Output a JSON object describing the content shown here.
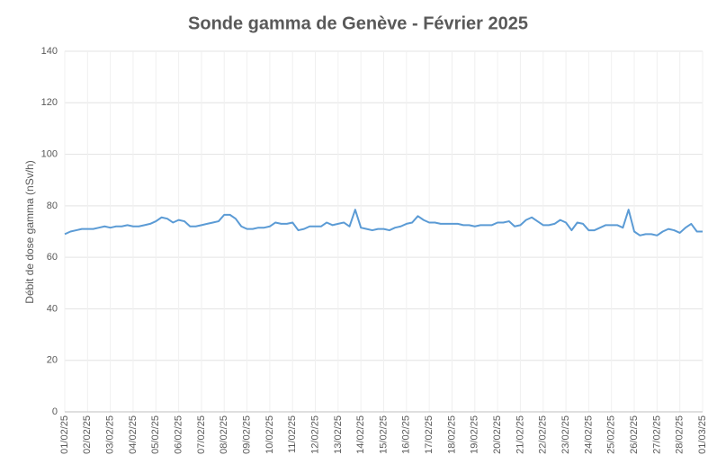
{
  "chart_data": {
    "type": "line",
    "title": "Sonde gamma de Genève - Février 2025",
    "y_label": "Débit de dose gamma (nSv/h)",
    "categories": [
      "01/02/25",
      null,
      null,
      null,
      "02/02/25",
      null,
      null,
      null,
      "03/02/25",
      null,
      null,
      null,
      "04/02/25",
      null,
      null,
      null,
      "05/02/25",
      null,
      null,
      null,
      "06/02/25",
      null,
      null,
      null,
      "07/02/25",
      null,
      null,
      null,
      "08/02/25",
      null,
      null,
      null,
      "09/02/25",
      null,
      null,
      null,
      "10/02/25",
      null,
      null,
      null,
      "11/02/25",
      null,
      null,
      null,
      "12/02/25",
      null,
      null,
      null,
      "13/02/25",
      null,
      null,
      null,
      "14/02/25",
      null,
      null,
      null,
      "15/02/25",
      null,
      null,
      null,
      "16/02/25",
      null,
      null,
      null,
      "17/02/25",
      null,
      null,
      null,
      "18/02/25",
      null,
      null,
      null,
      "19/02/25",
      null,
      null,
      null,
      "20/02/25",
      null,
      null,
      null,
      "21/02/25",
      null,
      null,
      null,
      "22/02/25",
      null,
      null,
      null,
      "23/02/25",
      null,
      null,
      null,
      "24/02/25",
      null,
      null,
      null,
      "25/02/25",
      null,
      null,
      null,
      "26/02/25",
      null,
      null,
      null,
      "27/02/25",
      null,
      null,
      null,
      "28/02/25",
      null,
      null,
      null,
      "01/03/25"
    ],
    "series": [
      {
        "color": "#5b9bd5",
        "values": [
          69,
          70,
          70.5,
          71,
          71,
          71,
          71.5,
          72,
          71.5,
          72,
          72,
          72.5,
          72,
          72,
          72.5,
          73,
          74,
          75.5,
          75,
          73.5,
          74.5,
          74,
          72,
          72,
          72.5,
          73,
          73.5,
          74,
          76.5,
          76.5,
          75,
          72,
          71,
          71,
          71.5,
          71.5,
          72,
          73.5,
          73,
          73,
          73.5,
          70.5,
          71,
          72,
          72,
          72,
          73.5,
          72.5,
          73,
          73.5,
          72,
          78.5,
          71.5,
          71,
          70.5,
          71,
          71,
          70.5,
          71.5,
          72,
          73,
          73.5,
          76,
          74.5,
          73.5,
          73.5,
          73,
          73,
          73,
          73,
          72.5,
          72.5,
          72,
          72.5,
          72.5,
          72.5,
          73.5,
          73.5,
          74,
          72,
          72.5,
          74.5,
          75.5,
          74,
          72.5,
          72.5,
          73,
          74.5,
          73.5,
          70.5,
          73.5,
          73,
          70.5,
          70.5,
          71.5,
          72.5,
          72.5,
          72.5,
          71.5,
          78.5,
          70,
          68.5,
          69,
          69,
          68.5,
          70,
          71,
          70.5,
          69.5,
          71.5,
          73,
          70,
          70
        ]
      }
    ],
    "ylim": [
      0,
      140
    ],
    "yticks": [
      0,
      20,
      40,
      60,
      80,
      100,
      120,
      140
    ],
    "grid": true
  }
}
